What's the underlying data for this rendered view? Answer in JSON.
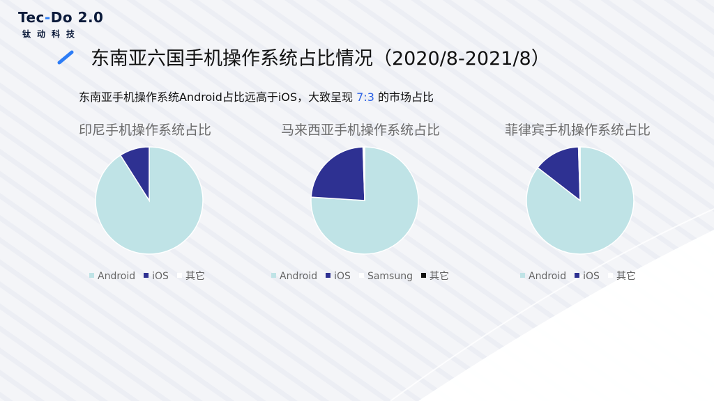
{
  "logo": {
    "main_prefix": "Tec",
    "main_dash": "-",
    "main_suffix": "Do 2.0",
    "sub": "钛动科技"
  },
  "header": {
    "title": "东南亚六国手机操作系统占比情况（2020/8-2021/8）",
    "subtitle_before": "东南亚手机操作系统Android占比远高于iOS，大致呈现 ",
    "subtitle_highlight": "7:3",
    "subtitle_after": " 的市场占比"
  },
  "colors": {
    "Android": "#bfe3e6",
    "iOS": "#2e3192",
    "Samsung": "#ffffff",
    "其它": "#111111",
    "highlight": "#2d63e6"
  },
  "chart_data": [
    {
      "type": "pie",
      "title": "印尼手机操作系统占比",
      "categories": [
        "Android",
        "iOS",
        "其它"
      ],
      "values": [
        91,
        9,
        0
      ],
      "legend_colors": [
        "#bfe3e6",
        "#2e3192",
        "#ffffff"
      ],
      "legend_position": "bottom"
    },
    {
      "type": "pie",
      "title": "马来西亚手机操作系统占比",
      "categories": [
        "Android",
        "iOS",
        "Samsung",
        "其它"
      ],
      "values": [
        76,
        23.5,
        0.3,
        0.2
      ],
      "legend_colors": [
        "#bfe3e6",
        "#2e3192",
        "#ffffff",
        "#111111"
      ],
      "legend_position": "bottom"
    },
    {
      "type": "pie",
      "title": "菲律宾手机操作系统占比",
      "categories": [
        "Android",
        "iOS",
        "其它"
      ],
      "values": [
        85.5,
        14,
        0.5
      ],
      "legend_colors": [
        "#bfe3e6",
        "#2e3192",
        "#ffffff"
      ],
      "legend_position": "bottom"
    }
  ]
}
